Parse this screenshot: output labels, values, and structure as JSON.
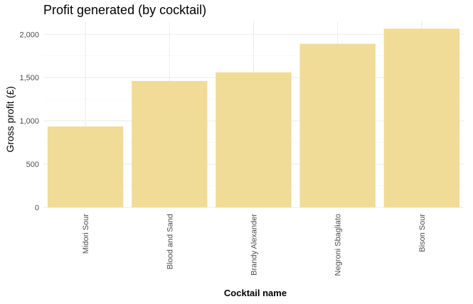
{
  "chart_data": {
    "type": "bar",
    "title": "Profit generated (by cocktail)",
    "xlabel": "Cocktail name",
    "ylabel": "Gross profit (£)",
    "categories": [
      "Midori Sour",
      "Blood and Sand",
      "Brandy Alexander",
      "Negroni Sbagliato",
      "Bison Sour"
    ],
    "values": [
      935,
      1460,
      1560,
      1890,
      2065
    ],
    "ylim": [
      0,
      2150
    ],
    "yticks": [
      0,
      500,
      1000,
      1500,
      2000
    ],
    "ytick_labels": [
      "0",
      "500",
      "1,000",
      "1,500",
      "2,000"
    ],
    "grid": true,
    "bar_color": "#f0dc96",
    "grid_color": "#ebebeb"
  }
}
